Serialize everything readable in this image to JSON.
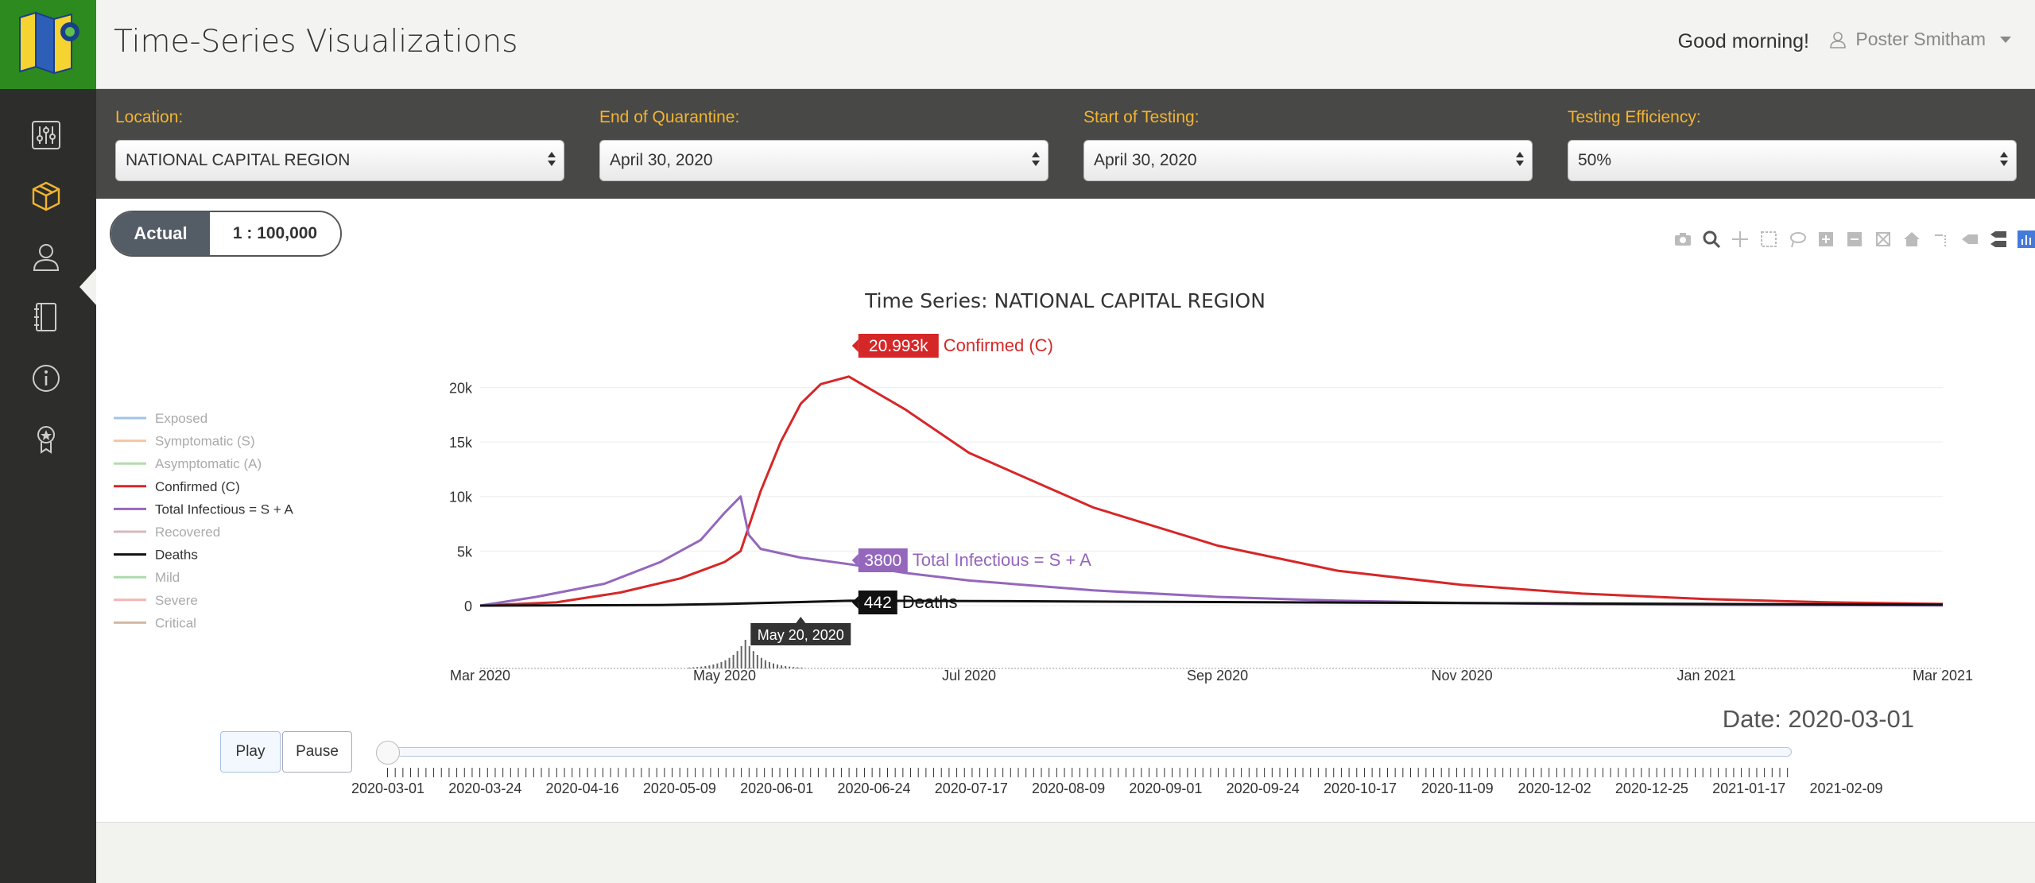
{
  "app": {
    "title": "Time-Series Visualizations",
    "greeting": "Good morning!",
    "user": "Poster Smitham"
  },
  "sidebar": {
    "items": [
      "sliders-icon",
      "box-icon",
      "user-icon",
      "notebook-icon",
      "info-icon",
      "award-icon"
    ],
    "active": 1
  },
  "filters": {
    "location": {
      "label": "Location:",
      "value": "NATIONAL CAPITAL REGION"
    },
    "quarantine": {
      "label": "End of Quarantine:",
      "value": "April 30, 2020"
    },
    "testing_start": {
      "label": "Start of Testing:",
      "value": "April 30, 2020"
    },
    "efficiency": {
      "label": "Testing Efficiency:",
      "value": "50%"
    }
  },
  "scale_toggle": {
    "active": "Actual",
    "inactive": "1 : 100,000"
  },
  "colors": {
    "confirmed": "#d62728",
    "infectious": "#9467bd",
    "deaths": "#111111",
    "exposed": "#8cb6e0",
    "symptomatic": "#f5b88a",
    "asymptomatic": "#9fd49a",
    "recovered": "#c9a9a9",
    "mild": "#98d19a",
    "severe": "#f4a2a2",
    "critical": "#c8a58a",
    "accent": "#f2b431"
  },
  "chart_data": {
    "type": "line",
    "title": "Time Series: NATIONAL CAPITAL REGION",
    "x_ticks": [
      "Mar 2020",
      "May 2020",
      "Jul 2020",
      "Sep 2020",
      "Nov 2020",
      "Jan 2021",
      "Mar 2021"
    ],
    "y_ticks": [
      "0",
      "5k",
      "10k",
      "15k",
      "20k"
    ],
    "ylim": [
      0,
      22000
    ],
    "xlim": [
      "2020-03-01",
      "2021-03-01"
    ],
    "legend": [
      "Exposed",
      "Symptomatic (S)",
      "Asymptomatic (A)",
      "Confirmed (C)",
      "Total Infectious = S + A",
      "Recovered",
      "Deaths",
      "Mild",
      "Severe",
      "Critical"
    ],
    "legend_placement": "left",
    "series": [
      {
        "name": "Confirmed (C)",
        "color_key": "confirmed",
        "x": [
          "2020-03-01",
          "2020-03-20",
          "2020-04-05",
          "2020-04-20",
          "2020-05-01",
          "2020-05-05",
          "2020-05-10",
          "2020-05-15",
          "2020-05-20",
          "2020-05-25",
          "2020-06-01",
          "2020-06-15",
          "2020-07-01",
          "2020-08-01",
          "2020-09-01",
          "2020-10-01",
          "2020-11-01",
          "2020-12-01",
          "2021-01-01",
          "2021-02-01",
          "2021-03-01"
        ],
        "y": [
          0,
          300,
          1200,
          2500,
          4000,
          5000,
          10500,
          15000,
          18500,
          20300,
          20993,
          18000,
          14000,
          9000,
          5500,
          3200,
          1900,
          1100,
          600,
          300,
          150
        ]
      },
      {
        "name": "Total Infectious = S + A",
        "color_key": "infectious",
        "x": [
          "2020-03-01",
          "2020-03-15",
          "2020-04-01",
          "2020-04-15",
          "2020-04-25",
          "2020-05-01",
          "2020-05-05",
          "2020-05-07",
          "2020-05-10",
          "2020-05-20",
          "2020-06-01",
          "2020-06-15",
          "2020-07-01",
          "2020-08-01",
          "2020-09-01",
          "2020-10-01",
          "2020-11-01",
          "2020-12-01",
          "2021-01-01",
          "2021-03-01"
        ],
        "y": [
          0,
          800,
          2000,
          4000,
          6000,
          8500,
          10000,
          6500,
          5200,
          4400,
          3800,
          3000,
          2300,
          1400,
          800,
          450,
          250,
          130,
          70,
          20
        ]
      },
      {
        "name": "Deaths",
        "color_key": "deaths",
        "x": [
          "2020-03-01",
          "2020-04-15",
          "2020-05-01",
          "2020-06-01",
          "2020-07-01",
          "2020-09-01",
          "2020-11-01",
          "2021-01-01",
          "2021-03-01"
        ],
        "y": [
          0,
          50,
          150,
          442,
          420,
          330,
          240,
          150,
          90
        ]
      }
    ],
    "annotations": [
      {
        "label": "20.993k",
        "text": "Confirmed (C)",
        "color_key": "confirmed"
      },
      {
        "label": "3800",
        "text": "Total Infectious = S + A",
        "color_key": "infectious"
      },
      {
        "label": "442",
        "text": "Deaths",
        "color_key": "deaths"
      }
    ],
    "hover_date": "May 20, 2020"
  },
  "playback": {
    "date_label": "Date: 2020-03-01",
    "play": "Play",
    "pause": "Pause",
    "ticks": [
      "2020-03-01",
      "2020-03-24",
      "2020-04-16",
      "2020-05-09",
      "2020-06-01",
      "2020-06-24",
      "2020-07-17",
      "2020-08-09",
      "2020-09-01",
      "2020-09-24",
      "2020-10-17",
      "2020-11-09",
      "2020-12-02",
      "2020-12-25",
      "2021-01-17",
      "2021-02-09"
    ],
    "value": 0
  }
}
